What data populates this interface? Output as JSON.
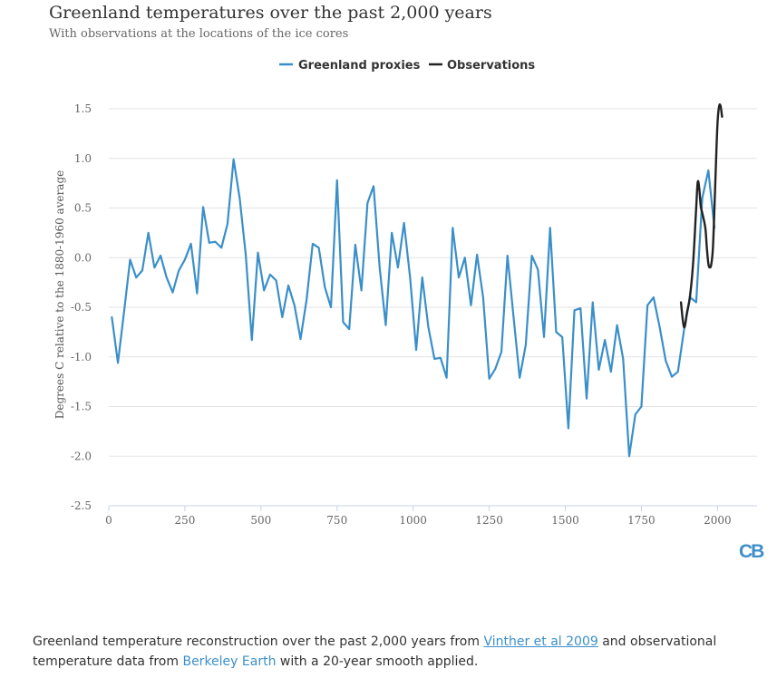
{
  "header": {
    "title": "Greenland temperatures over the past 2,000 years",
    "subtitle": "With observations at the locations of the ice cores"
  },
  "logo": {
    "text": "CB"
  },
  "caption": {
    "part1": "Greenland temperature reconstruction over the past 2,000 years from ",
    "link1": "Vinther et al 2009",
    "part2": " and observational temperature data from ",
    "link2": "Berkeley Earth",
    "part3": " with a 20-year smooth applied."
  },
  "colors": {
    "proxies": "#3a8fc9",
    "observations": "#222222",
    "grid": "#e3e3e3",
    "axis": "#c8d4e8",
    "text": "#666666"
  },
  "chart_data": {
    "type": "line",
    "title": "Greenland temperatures over the past 2,000 years",
    "subtitle": "With observations at the locations of the ice cores",
    "xlabel": "",
    "ylabel": "Degrees C relative to the 1880-1960 average",
    "xlim": [
      0,
      2130
    ],
    "ylim": [
      -2.5,
      1.5
    ],
    "xticks": [
      0,
      250,
      500,
      750,
      1000,
      1250,
      1500,
      1750,
      2000
    ],
    "yticks": [
      1.5,
      1.0,
      0.5,
      0.0,
      -0.5,
      -1.0,
      -1.5,
      -2.0,
      -2.5
    ],
    "ytick_labels": [
      "1.5",
      "1.0",
      "0.5",
      "0.0",
      "-0.5",
      "-1.0",
      "-1.5",
      "-2.0",
      "-2.5"
    ],
    "grid": true,
    "legend_position": "top-center",
    "series": [
      {
        "name": "Greenland proxies",
        "color": "#3a8fc9",
        "points": [
          [
            10,
            -0.6
          ],
          [
            30,
            -1.06
          ],
          [
            50,
            -0.55
          ],
          [
            70,
            -0.02
          ],
          [
            90,
            -0.2
          ],
          [
            110,
            -0.13
          ],
          [
            130,
            0.25
          ],
          [
            150,
            -0.1
          ],
          [
            170,
            0.02
          ],
          [
            190,
            -0.2
          ],
          [
            210,
            -0.35
          ],
          [
            230,
            -0.13
          ],
          [
            250,
            -0.02
          ],
          [
            270,
            0.14
          ],
          [
            290,
            -0.36
          ],
          [
            310,
            0.51
          ],
          [
            330,
            0.15
          ],
          [
            350,
            0.16
          ],
          [
            370,
            0.1
          ],
          [
            390,
            0.34
          ],
          [
            410,
            0.99
          ],
          [
            430,
            0.6
          ],
          [
            450,
            0.03
          ],
          [
            470,
            -0.83
          ],
          [
            490,
            0.05
          ],
          [
            510,
            -0.33
          ],
          [
            530,
            -0.17
          ],
          [
            550,
            -0.23
          ],
          [
            570,
            -0.6
          ],
          [
            590,
            -0.28
          ],
          [
            610,
            -0.48
          ],
          [
            630,
            -0.82
          ],
          [
            650,
            -0.42
          ],
          [
            670,
            0.14
          ],
          [
            690,
            0.1
          ],
          [
            710,
            -0.3
          ],
          [
            730,
            -0.5
          ],
          [
            750,
            0.78
          ],
          [
            770,
            -0.65
          ],
          [
            790,
            -0.72
          ],
          [
            810,
            0.13
          ],
          [
            830,
            -0.33
          ],
          [
            850,
            0.55
          ],
          [
            870,
            0.72
          ],
          [
            890,
            -0.1
          ],
          [
            910,
            -0.68
          ],
          [
            930,
            0.25
          ],
          [
            950,
            -0.1
          ],
          [
            970,
            0.35
          ],
          [
            990,
            -0.2
          ],
          [
            1010,
            -0.93
          ],
          [
            1030,
            -0.2
          ],
          [
            1050,
            -0.7
          ],
          [
            1070,
            -1.02
          ],
          [
            1090,
            -1.01
          ],
          [
            1110,
            -1.21
          ],
          [
            1130,
            0.3
          ],
          [
            1150,
            -0.2
          ],
          [
            1170,
            0.0
          ],
          [
            1190,
            -0.48
          ],
          [
            1210,
            0.03
          ],
          [
            1230,
            -0.4
          ],
          [
            1250,
            -1.22
          ],
          [
            1270,
            -1.12
          ],
          [
            1290,
            -0.95
          ],
          [
            1310,
            0.02
          ],
          [
            1330,
            -0.6
          ],
          [
            1350,
            -1.21
          ],
          [
            1370,
            -0.88
          ],
          [
            1390,
            0.02
          ],
          [
            1410,
            -0.12
          ],
          [
            1430,
            -0.8
          ],
          [
            1450,
            0.3
          ],
          [
            1470,
            -0.75
          ],
          [
            1490,
            -0.8
          ],
          [
            1510,
            -1.72
          ],
          [
            1530,
            -0.53
          ],
          [
            1550,
            -0.51
          ],
          [
            1570,
            -1.42
          ],
          [
            1590,
            -0.45
          ],
          [
            1610,
            -1.13
          ],
          [
            1630,
            -0.83
          ],
          [
            1650,
            -1.15
          ],
          [
            1670,
            -0.68
          ],
          [
            1690,
            -1.02
          ],
          [
            1710,
            -2.0
          ],
          [
            1730,
            -1.58
          ],
          [
            1750,
            -1.5
          ],
          [
            1770,
            -0.48
          ],
          [
            1790,
            -0.4
          ],
          [
            1810,
            -0.7
          ],
          [
            1830,
            -1.04
          ],
          [
            1850,
            -1.2
          ],
          [
            1870,
            -1.15
          ],
          [
            1890,
            -0.73
          ],
          [
            1910,
            -0.4
          ],
          [
            1930,
            -0.45
          ],
          [
            1950,
            0.6
          ],
          [
            1970,
            0.88
          ],
          [
            1990,
            0.3
          ]
        ]
      },
      {
        "name": "Observations",
        "color": "#222222",
        "points": [
          [
            1880,
            -0.45
          ],
          [
            1890,
            -0.7
          ],
          [
            1900,
            -0.55
          ],
          [
            1910,
            -0.38
          ],
          [
            1920,
            -0.05
          ],
          [
            1930,
            0.5
          ],
          [
            1935,
            0.76
          ],
          [
            1940,
            0.7
          ],
          [
            1945,
            0.52
          ],
          [
            1950,
            0.45
          ],
          [
            1960,
            0.3
          ],
          [
            1965,
            0.1
          ],
          [
            1970,
            -0.06
          ],
          [
            1975,
            -0.1
          ],
          [
            1980,
            -0.06
          ],
          [
            1985,
            0.1
          ],
          [
            1990,
            0.5
          ],
          [
            1995,
            0.95
          ],
          [
            2000,
            1.35
          ],
          [
            2005,
            1.52
          ],
          [
            2010,
            1.53
          ],
          [
            2015,
            1.42
          ]
        ]
      }
    ]
  }
}
